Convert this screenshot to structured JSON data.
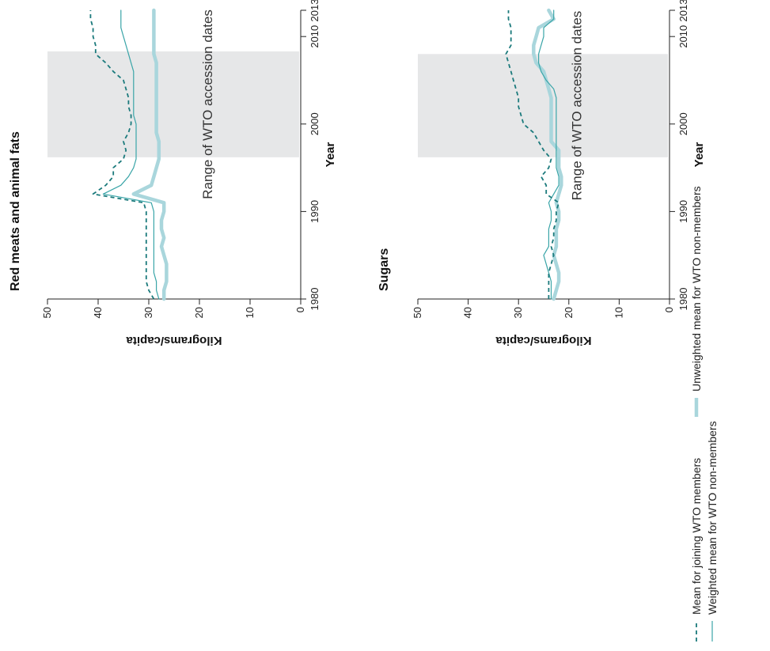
{
  "colors": {
    "joining": "#1b7a7c",
    "unweighted": "#a9d6dc",
    "weighted": "#3aa5a8",
    "band": "#e6e7e8",
    "axis": "#222222"
  },
  "legend": {
    "joining": "Mean for joining WTO members",
    "unweighted": "Unweighted mean for WTO non-members",
    "weighted": "Weighted mean for WTO non-members"
  },
  "chart_data": [
    {
      "type": "line",
      "title": "Red meats and animal fats",
      "xlabel": "Year",
      "ylabel": "Kilograms/capita",
      "xlim": [
        1980,
        2013
      ],
      "ylim": [
        0,
        50
      ],
      "xticks": [
        "1980",
        "1990",
        "2000",
        "2010",
        "2013"
      ],
      "yticks": [
        "0",
        "10",
        "20",
        "30",
        "40",
        "50"
      ],
      "band": {
        "x0": 1996.2,
        "x1": 2008.3,
        "label": "Range of WTO accession dates"
      },
      "series": [
        {
          "name": "Mean for joining WTO members",
          "style": "dashed",
          "x": [
            1980,
            1981,
            1982,
            1983,
            1984,
            1985,
            1986,
            1987,
            1988,
            1989,
            1990,
            1991,
            1992,
            1993,
            1994,
            1995,
            1996,
            1997,
            1998,
            1999,
            2000,
            2001,
            2002,
            2003,
            2004,
            2005,
            2006,
            2007,
            2008,
            2009,
            2010,
            2011,
            2012,
            2013
          ],
          "values": [
            29,
            30,
            30.5,
            30.5,
            30.5,
            30.5,
            30.5,
            30.5,
            30.5,
            30.5,
            30.5,
            31,
            41,
            38.5,
            37,
            37,
            35,
            34.5,
            35,
            34,
            33.5,
            33.5,
            34,
            34,
            34.5,
            35,
            37,
            38.5,
            40.5,
            40.5,
            41,
            41,
            41.5,
            41.5
          ]
        },
        {
          "name": "Unweighted mean for WTO non-members",
          "style": "thick",
          "x": [
            1980,
            1981,
            1982,
            1983,
            1984,
            1985,
            1986,
            1987,
            1988,
            1989,
            1990,
            1991,
            1992,
            1993,
            1994,
            1995,
            1996,
            1997,
            1998,
            1999,
            2000,
            2001,
            2002,
            2003,
            2004,
            2005,
            2006,
            2007,
            2008,
            2009,
            2010,
            2011,
            2012,
            2013
          ],
          "values": [
            27,
            27,
            26.5,
            26.5,
            26.5,
            27,
            27.5,
            27,
            27.5,
            27.5,
            27,
            27,
            33,
            29.5,
            29,
            28.5,
            28,
            28,
            28,
            28.5,
            28.5,
            28.5,
            28.5,
            28.5,
            28.5,
            28.5,
            28.5,
            28.5,
            29,
            29,
            29,
            29,
            29,
            29
          ]
        },
        {
          "name": "Weighted mean for WTO non-members",
          "style": "thin",
          "x": [
            1980,
            1981,
            1982,
            1983,
            1984,
            1985,
            1986,
            1987,
            1988,
            1989,
            1990,
            1991,
            1992,
            1993,
            1994,
            1995,
            1996,
            1997,
            1998,
            1999,
            2000,
            2001,
            2002,
            2003,
            2004,
            2005,
            2006,
            2007,
            2008,
            2009,
            2010,
            2011,
            2012,
            2013
          ],
          "values": [
            28,
            28.5,
            28.5,
            29,
            29,
            29,
            29,
            29,
            29,
            29,
            29,
            29.5,
            39,
            35.5,
            34,
            33,
            32.5,
            32.5,
            32.5,
            32.5,
            32.5,
            33,
            33,
            33,
            33,
            33,
            33,
            33.5,
            34,
            34.5,
            35,
            35.5,
            35.5,
            35.5
          ]
        }
      ]
    },
    {
      "type": "line",
      "title": "Sugars",
      "xlabel": "Year",
      "ylabel": "Kilograms/capita",
      "xlim": [
        1980,
        2013
      ],
      "ylim": [
        0,
        50
      ],
      "xticks": [
        "1980",
        "1990",
        "2000",
        "2010",
        "2013"
      ],
      "yticks": [
        "0",
        "10",
        "20",
        "30",
        "40",
        "50"
      ],
      "band": {
        "x0": 1996.2,
        "x1": 2008.0,
        "label": "Range of WTO accession dates"
      },
      "series": [
        {
          "name": "Mean for joining WTO members",
          "style": "dashed",
          "x": [
            1980,
            1981,
            1982,
            1983,
            1984,
            1985,
            1986,
            1987,
            1988,
            1989,
            1990,
            1991,
            1992,
            1993,
            1994,
            1995,
            1996,
            1997,
            1998,
            1999,
            2000,
            2001,
            2002,
            2003,
            2004,
            2005,
            2006,
            2007,
            2008,
            2009,
            2010,
            2011,
            2012,
            2013
          ],
          "values": [
            24,
            24,
            24,
            24,
            23.5,
            23,
            23.5,
            23,
            23,
            22.5,
            22.5,
            22,
            24.5,
            24.5,
            25.5,
            24,
            23.5,
            25,
            26,
            27,
            29,
            29.5,
            30,
            30,
            30.5,
            31,
            31.5,
            32,
            32.5,
            31.5,
            31.5,
            31.5,
            32,
            32
          ]
        },
        {
          "name": "Unweighted mean for WTO non-members",
          "style": "thick",
          "x": [
            1980,
            1981,
            1982,
            1983,
            1984,
            1985,
            1986,
            1987,
            1988,
            1989,
            1990,
            1991,
            1992,
            1993,
            1994,
            1995,
            1996,
            1997,
            1998,
            1999,
            2000,
            2001,
            2002,
            2003,
            2004,
            2005,
            2006,
            2007,
            2008,
            2009,
            2010,
            2011,
            2012,
            2013
          ],
          "values": [
            23,
            22.5,
            22,
            22,
            22.5,
            23,
            22.5,
            22.5,
            22.5,
            22,
            22,
            22.5,
            22,
            21.5,
            21.5,
            22,
            22,
            22,
            23.5,
            23.5,
            23.5,
            23.5,
            23.5,
            23.5,
            24,
            24.5,
            25,
            26.5,
            27,
            27,
            26.5,
            26,
            23,
            24
          ]
        },
        {
          "name": "Weighted mean for WTO non-members",
          "style": "thin",
          "x": [
            1980,
            1981,
            1982,
            1983,
            1984,
            1985,
            1986,
            1987,
            1988,
            1989,
            1990,
            1991,
            1992,
            1993,
            1994,
            1995,
            1996,
            1997,
            1998,
            1999,
            2000,
            2001,
            2002,
            2003,
            2004,
            2005,
            2006,
            2007,
            2008,
            2009,
            2010,
            2011,
            2012,
            2013
          ],
          "values": [
            23.5,
            23.5,
            23.5,
            24,
            24.5,
            25,
            24,
            24,
            24,
            23.5,
            23.5,
            24,
            23,
            22,
            22,
            22.5,
            22.5,
            22.5,
            22.5,
            22.5,
            22.5,
            22.5,
            22.5,
            22.5,
            23,
            24.5,
            25.5,
            26,
            26,
            25.5,
            25,
            25,
            23,
            23
          ]
        }
      ]
    }
  ]
}
